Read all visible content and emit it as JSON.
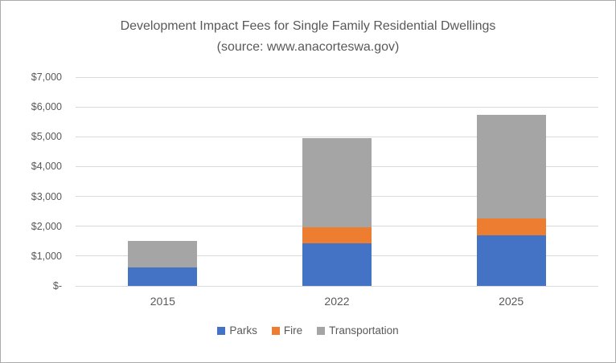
{
  "chart_data": {
    "type": "bar",
    "stacked": true,
    "title": "Development Impact Fees for Single Family Residential Dwellings",
    "subtitle": "(source: www.anacorteswa.gov)",
    "categories": [
      "2015",
      "2022",
      "2025"
    ],
    "series": [
      {
        "name": "Parks",
        "color": "#4472C4",
        "values": [
          620,
          1430,
          1700
        ]
      },
      {
        "name": "Fire",
        "color": "#ED7D31",
        "values": [
          0,
          540,
          570
        ]
      },
      {
        "name": "Transportation",
        "color": "#A5A5A5",
        "values": [
          900,
          2990,
          3470
        ]
      }
    ],
    "totals": [
      1520,
      4960,
      5740
    ],
    "ylim": [
      0,
      7000
    ],
    "ytick_step": 1000,
    "ytick_labels": [
      "$-",
      "$1,000",
      "$2,000",
      "$3,000",
      "$4,000",
      "$5,000",
      "$6,000",
      "$7,000"
    ],
    "xlabel": "",
    "ylabel": "",
    "grid": true,
    "legend_position": "bottom",
    "gridline_color": "#D9D9D9",
    "text_color": "#595959",
    "background_color": "#FFFFFF"
  }
}
